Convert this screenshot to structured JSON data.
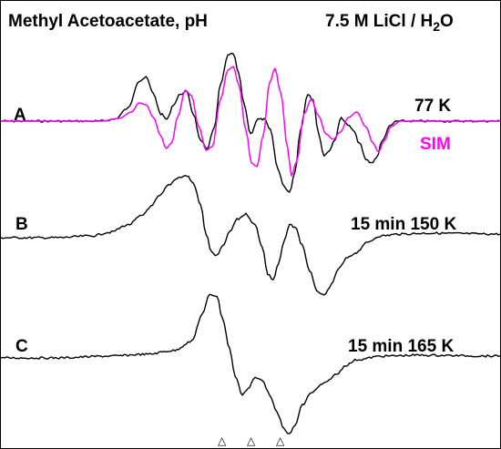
{
  "colors": {
    "experimental": "#000000",
    "simulation": "#ff00ff",
    "background": "#ffffff"
  },
  "chart_data": {
    "type": "line",
    "title_left": "Methyl Acetoacetate, pH",
    "title_right": "7.5 M LiCl / H",
    "title_right_sub": "2",
    "title_right_end": "O",
    "xlabel": "",
    "ylabel": "",
    "x_ticks": [],
    "y_ticks": [],
    "grid": false,
    "legend": "none",
    "markers": [
      "△",
      "△",
      "△"
    ],
    "panels": [
      {
        "id": "A",
        "condition": "77 K",
        "series": [
          {
            "kind": "experimental",
            "points": [
              [
                0,
                0
              ],
              [
                60,
                0
              ],
              [
                110,
                0
              ],
              [
                125,
                -2
              ],
              [
                140,
                -14
              ],
              [
                152,
                -44
              ],
              [
                160,
                -48
              ],
              [
                168,
                -30
              ],
              [
                176,
                -8
              ],
              [
                183,
                -2
              ],
              [
                190,
                -18
              ],
              [
                198,
                -30
              ],
              [
                205,
                -32
              ],
              [
                212,
                -8
              ],
              [
                220,
                22
              ],
              [
                227,
                30
              ],
              [
                235,
                8
              ],
              [
                242,
                -40
              ],
              [
                250,
                -72
              ],
              [
                256,
                -74
              ],
              [
                262,
                -52
              ],
              [
                268,
                -18
              ],
              [
                275,
                14
              ],
              [
                283,
                -2
              ],
              [
                290,
                -2
              ],
              [
                297,
                10
              ],
              [
                305,
                52
              ],
              [
                312,
                72
              ],
              [
                318,
                78
              ],
              [
                324,
                56
              ],
              [
                330,
                10
              ],
              [
                338,
                -30
              ],
              [
                344,
                -24
              ],
              [
                350,
                14
              ],
              [
                356,
                38
              ],
              [
                362,
                32
              ],
              [
                368,
                20
              ],
              [
                375,
                -4
              ],
              [
                382,
                4
              ],
              [
                388,
                10
              ],
              [
                395,
                24
              ],
              [
                402,
                42
              ],
              [
                408,
                46
              ],
              [
                414,
                40
              ],
              [
                420,
                22
              ],
              [
                428,
                6
              ],
              [
                436,
                0
              ],
              [
                550,
                0
              ]
            ]
          },
          {
            "kind": "simulation",
            "name": "SIM",
            "points": [
              [
                0,
                0
              ],
              [
                110,
                0
              ],
              [
                130,
                -3
              ],
              [
                144,
                -10
              ],
              [
                152,
                -20
              ],
              [
                160,
                -18
              ],
              [
                168,
                -4
              ],
              [
                176,
                16
              ],
              [
                182,
                30
              ],
              [
                188,
                24
              ],
              [
                195,
                -5
              ],
              [
                203,
                -34
              ],
              [
                210,
                -28
              ],
              [
                218,
                6
              ],
              [
                226,
                32
              ],
              [
                233,
                28
              ],
              [
                242,
                -24
              ],
              [
                250,
                -56
              ],
              [
                256,
                -60
              ],
              [
                262,
                -40
              ],
              [
                270,
                10
              ],
              [
                276,
                46
              ],
              [
                282,
                50
              ],
              [
                289,
                16
              ],
              [
                296,
                -42
              ],
              [
                302,
                -58
              ],
              [
                308,
                -32
              ],
              [
                316,
                30
              ],
              [
                320,
                60
              ],
              [
                326,
                44
              ],
              [
                334,
                -8
              ],
              [
                342,
                -24
              ],
              [
                350,
                -6
              ],
              [
                358,
                14
              ],
              [
                366,
                20
              ],
              [
                374,
                12
              ],
              [
                383,
                -4
              ],
              [
                392,
                -10
              ],
              [
                402,
                6
              ],
              [
                410,
                24
              ],
              [
                416,
                34
              ],
              [
                422,
                22
              ],
              [
                430,
                6
              ],
              [
                440,
                0
              ],
              [
                550,
                0
              ]
            ]
          }
        ]
      },
      {
        "id": "B",
        "condition": "15 min 150 K",
        "series": [
          {
            "kind": "experimental",
            "points": [
              [
                0,
                0
              ],
              [
                60,
                0
              ],
              [
                100,
                -2
              ],
              [
                120,
                -6
              ],
              [
                140,
                -14
              ],
              [
                155,
                -24
              ],
              [
                165,
                -34
              ],
              [
                175,
                -46
              ],
              [
                185,
                -58
              ],
              [
                195,
                -66
              ],
              [
                205,
                -68
              ],
              [
                212,
                -60
              ],
              [
                220,
                -36
              ],
              [
                226,
                -4
              ],
              [
                232,
                16
              ],
              [
                238,
                20
              ],
              [
                244,
                10
              ],
              [
                252,
                -6
              ],
              [
                260,
                -20
              ],
              [
                270,
                -26
              ],
              [
                280,
                -14
              ],
              [
                288,
                10
              ],
              [
                294,
                40
              ],
              [
                300,
                46
              ],
              [
                306,
                28
              ],
              [
                312,
                4
              ],
              [
                318,
                -14
              ],
              [
                324,
                -12
              ],
              [
                332,
                8
              ],
              [
                340,
                36
              ],
              [
                348,
                58
              ],
              [
                356,
                64
              ],
              [
                364,
                52
              ],
              [
                372,
                34
              ],
              [
                382,
                22
              ],
              [
                392,
                16
              ],
              [
                402,
                6
              ],
              [
                418,
                -2
              ],
              [
                440,
                -4
              ],
              [
                470,
                -5
              ],
              [
                550,
                -4
              ]
            ]
          }
        ]
      },
      {
        "id": "C",
        "condition": "15 min 165 K",
        "series": [
          {
            "kind": "experimental",
            "points": [
              [
                0,
                0
              ],
              [
                60,
                0
              ],
              [
                120,
                -2
              ],
              [
                160,
                -4
              ],
              [
                190,
                -8
              ],
              [
                210,
                -18
              ],
              [
                222,
                -48
              ],
              [
                230,
                -70
              ],
              [
                238,
                -68
              ],
              [
                244,
                -44
              ],
              [
                252,
                -10
              ],
              [
                258,
                20
              ],
              [
                266,
                40
              ],
              [
                272,
                34
              ],
              [
                280,
                22
              ],
              [
                288,
                24
              ],
              [
                296,
                40
              ],
              [
                304,
                60
              ],
              [
                312,
                78
              ],
              [
                318,
                84
              ],
              [
                324,
                74
              ],
              [
                332,
                52
              ],
              [
                342,
                38
              ],
              [
                356,
                28
              ],
              [
                370,
                18
              ],
              [
                380,
                8
              ],
              [
                392,
                2
              ],
              [
                420,
                -2
              ],
              [
                460,
                -3
              ],
              [
                550,
                -2
              ]
            ]
          }
        ]
      }
    ]
  }
}
